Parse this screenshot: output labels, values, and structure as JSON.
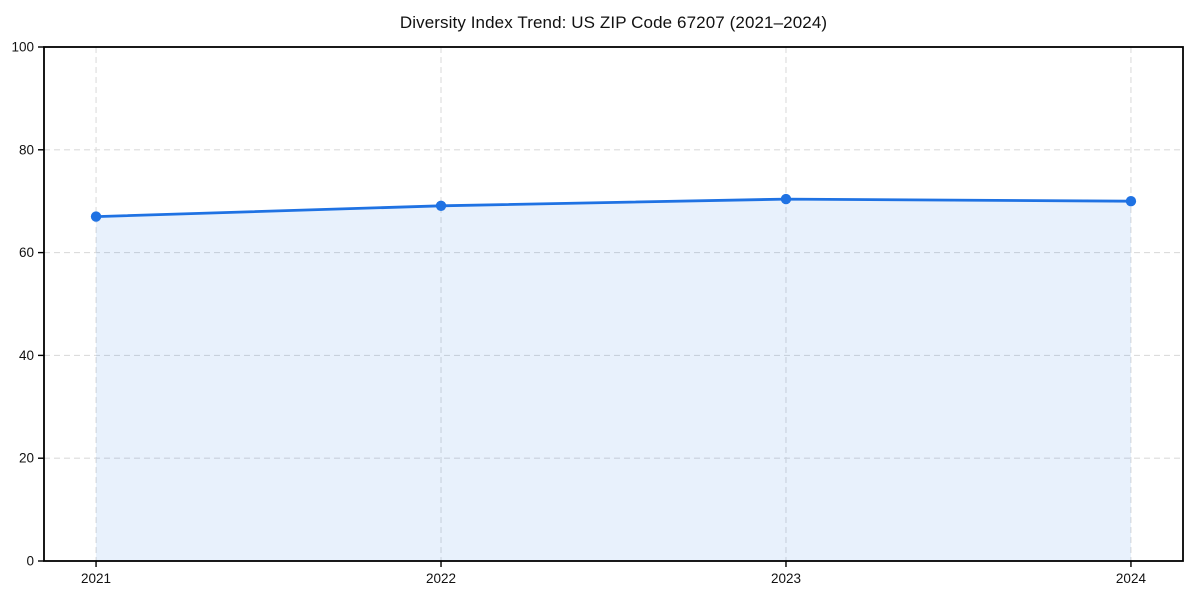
{
  "chart_data": {
    "type": "area",
    "title": "Diversity Index Trend: US ZIP Code 67207 (2021–2024)",
    "categories": [
      "2021",
      "2022",
      "2023",
      "2024"
    ],
    "series": [
      {
        "name": "Diversity Index",
        "values": [
          67.0,
          69.1,
          70.4,
          70.0
        ]
      }
    ],
    "xlabel": "",
    "ylabel": "",
    "ylim": [
      0,
      100
    ],
    "y_ticks": [
      0,
      20,
      40,
      60,
      80,
      100
    ],
    "grid": "dashed, both axes",
    "legend_position": "none",
    "colors": {
      "line": "#1f72e3",
      "marker": "#1f72e3",
      "fill": "rgba(31, 114, 227, 0.10)",
      "grid": "#dcdcdc",
      "axis_box": "#000000",
      "tick_text": "#111111",
      "background": "#ffffff"
    }
  }
}
